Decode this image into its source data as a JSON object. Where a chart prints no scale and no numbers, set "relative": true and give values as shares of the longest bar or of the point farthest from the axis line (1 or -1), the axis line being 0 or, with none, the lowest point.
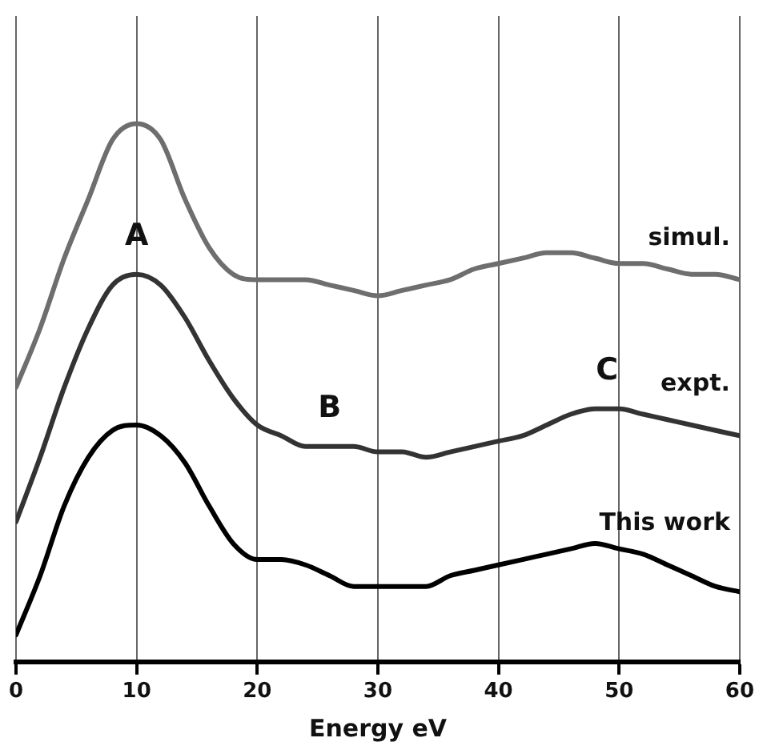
{
  "chart_data": {
    "type": "line",
    "relative": true,
    "xlabel": "Energy eV",
    "xlim": [
      0,
      60
    ],
    "xticks": [
      0,
      10,
      20,
      30,
      40,
      50,
      60
    ],
    "grid": "x",
    "legend": false,
    "marker": "none",
    "line_style": "solid",
    "x": [
      0,
      2,
      4,
      6,
      8,
      10,
      12,
      14,
      16,
      18,
      20,
      22,
      24,
      26,
      28,
      30,
      32,
      34,
      36,
      38,
      40,
      42,
      44,
      46,
      48,
      50,
      52,
      54,
      56,
      58,
      60
    ],
    "series": [
      {
        "name": "simul.",
        "color": "#6e6e6e",
        "values": [
          0.51,
          0.62,
          0.75,
          0.86,
          0.97,
          1,
          0.97,
          0.86,
          0.77,
          0.72,
          0.71,
          0.71,
          0.71,
          0.7,
          0.69,
          0.68,
          0.69,
          0.7,
          0.71,
          0.73,
          0.74,
          0.75,
          0.76,
          0.76,
          0.75,
          0.74,
          0.74,
          0.73,
          0.72,
          0.72,
          0.71
        ]
      },
      {
        "name": "expt.",
        "color": "#333333",
        "values": [
          0.26,
          0.38,
          0.51,
          0.62,
          0.7,
          0.72,
          0.7,
          0.64,
          0.56,
          0.49,
          0.44,
          0.42,
          0.4,
          0.4,
          0.4,
          0.39,
          0.39,
          0.38,
          0.39,
          0.4,
          0.41,
          0.42,
          0.44,
          0.46,
          0.47,
          0.47,
          0.46,
          0.45,
          0.44,
          0.43,
          0.42
        ]
      },
      {
        "name": "This work",
        "color": "#000000",
        "values": [
          0.05,
          0.16,
          0.29,
          0.38,
          0.43,
          0.44,
          0.42,
          0.37,
          0.29,
          0.22,
          0.19,
          0.19,
          0.18,
          0.16,
          0.14,
          0.14,
          0.14,
          0.14,
          0.16,
          0.17,
          0.18,
          0.19,
          0.2,
          0.21,
          0.22,
          0.21,
          0.2,
          0.18,
          0.16,
          0.14,
          0.13
        ]
      }
    ],
    "annotations": [
      {
        "text": "A",
        "x": 10,
        "y": 0.72
      },
      {
        "text": "B",
        "x": 26,
        "y": 0.4
      },
      {
        "text": "C",
        "x": 49,
        "y": 0.47
      }
    ]
  }
}
